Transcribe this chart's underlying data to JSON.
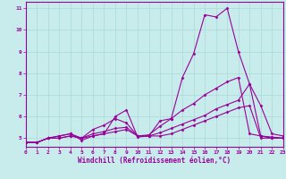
{
  "xlabel": "Windchill (Refroidissement éolien,°C)",
  "bg_color": "#c8ecec",
  "line_color": "#990099",
  "grid_color": "#aadddd",
  "xlim": [
    0,
    23
  ],
  "ylim": [
    4.6,
    11.3
  ],
  "xticks": [
    0,
    1,
    2,
    3,
    4,
    5,
    6,
    7,
    8,
    9,
    10,
    11,
    12,
    13,
    14,
    15,
    16,
    17,
    18,
    19,
    20,
    21,
    22,
    23
  ],
  "yticks": [
    5,
    6,
    7,
    8,
    9,
    10,
    11
  ],
  "series": [
    {
      "x": [
        0,
        1,
        2,
        3,
        4,
        5,
        6,
        7,
        8,
        9,
        10,
        11,
        12,
        13,
        14,
        15,
        16,
        17,
        18,
        19,
        20,
        21,
        22,
        23
      ],
      "y": [
        4.8,
        4.8,
        5.0,
        5.1,
        5.2,
        4.9,
        5.1,
        5.2,
        6.0,
        6.3,
        5.05,
        5.1,
        5.8,
        5.9,
        7.8,
        8.9,
        10.7,
        10.6,
        11.0,
        9.0,
        7.5,
        6.5,
        5.2,
        5.1
      ]
    },
    {
      "x": [
        0,
        1,
        2,
        3,
        4,
        5,
        6,
        7,
        8,
        9,
        10,
        11,
        12,
        13,
        14,
        15,
        16,
        17,
        18,
        19,
        20,
        21,
        22,
        23
      ],
      "y": [
        4.8,
        4.8,
        5.0,
        5.1,
        5.2,
        5.0,
        5.4,
        5.6,
        5.9,
        5.7,
        5.1,
        5.15,
        5.55,
        5.9,
        6.3,
        6.6,
        7.0,
        7.3,
        7.6,
        7.8,
        5.2,
        5.1,
        5.05,
        5.0
      ]
    },
    {
      "x": [
        0,
        1,
        2,
        3,
        4,
        5,
        6,
        7,
        8,
        9,
        10,
        11,
        12,
        13,
        14,
        15,
        16,
        17,
        18,
        19,
        20,
        21,
        22,
        23
      ],
      "y": [
        4.8,
        4.8,
        5.0,
        5.0,
        5.1,
        5.0,
        5.2,
        5.3,
        5.45,
        5.5,
        5.1,
        5.1,
        5.25,
        5.45,
        5.65,
        5.85,
        6.05,
        6.35,
        6.55,
        6.75,
        7.5,
        5.1,
        5.0,
        5.0
      ]
    },
    {
      "x": [
        0,
        1,
        2,
        3,
        4,
        5,
        6,
        7,
        8,
        9,
        10,
        11,
        12,
        13,
        14,
        15,
        16,
        17,
        18,
        19,
        20,
        21,
        22,
        23
      ],
      "y": [
        4.8,
        4.8,
        5.0,
        5.0,
        5.1,
        5.0,
        5.1,
        5.2,
        5.3,
        5.4,
        5.1,
        5.1,
        5.1,
        5.2,
        5.4,
        5.6,
        5.8,
        6.0,
        6.2,
        6.4,
        6.5,
        5.0,
        5.0,
        5.0
      ]
    }
  ]
}
